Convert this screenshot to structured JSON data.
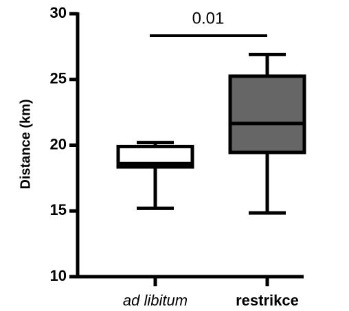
{
  "chart_data": {
    "type": "box",
    "ylabel": "Distance (km)",
    "categories": [
      "ad libitum",
      "restrikce"
    ],
    "colors": [
      "#ffffff",
      "#666666"
    ],
    "boxes": [
      {
        "min": 15.2,
        "q1": 18.35,
        "median": 18.6,
        "q3": 19.9,
        "max": 20.2
      },
      {
        "min": 14.85,
        "q1": 19.45,
        "median": 21.65,
        "q3": 25.25,
        "max": 26.9
      }
    ],
    "annotation": "0.01",
    "ylim": [
      10,
      30
    ],
    "yticks": [
      10,
      15,
      20,
      25,
      30
    ]
  }
}
